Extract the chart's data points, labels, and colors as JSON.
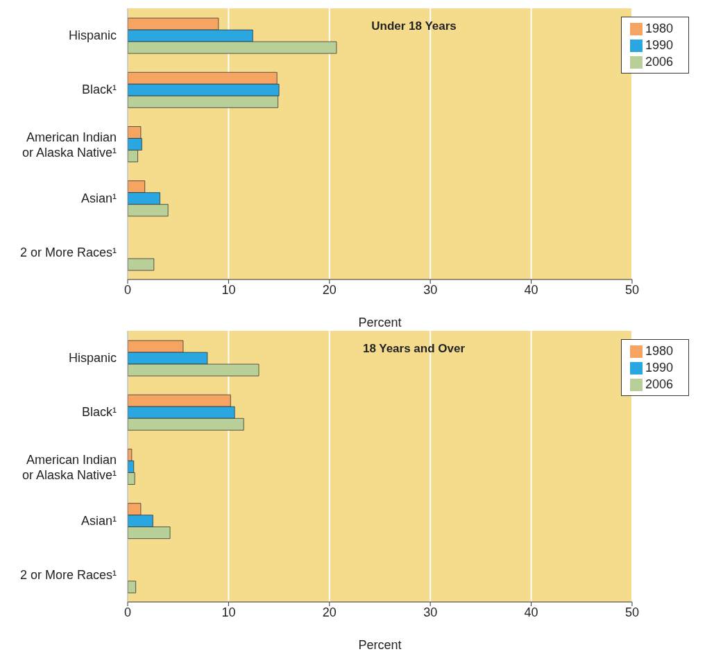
{
  "chart_data": [
    {
      "type": "bar",
      "orientation": "horizontal",
      "title": "Under 18 Years",
      "xlabel": "Percent",
      "categories": [
        "Hispanic",
        "Black¹",
        "American Indian or Alaska Native¹",
        "Asian¹",
        "2 or More Races¹"
      ],
      "series": [
        {
          "name": "1980",
          "color": "#f5a462",
          "values": [
            9.0,
            14.8,
            1.3,
            1.7,
            null
          ]
        },
        {
          "name": "1990",
          "color": "#2aa6e0",
          "values": [
            12.4,
            15.0,
            1.4,
            3.2,
            null
          ]
        },
        {
          "name": "2006",
          "color": "#b8cf98",
          "values": [
            20.7,
            14.9,
            1.0,
            4.0,
            2.6
          ]
        }
      ],
      "xlim": [
        0,
        50
      ],
      "xticks": [
        0,
        10,
        20,
        30,
        40,
        50
      ],
      "grid": "x",
      "legend": "top right"
    },
    {
      "type": "bar",
      "orientation": "horizontal",
      "title": "18 Years and Over",
      "xlabel": "Percent",
      "categories": [
        "Hispanic",
        "Black¹",
        "American Indian or Alaska Native¹",
        "Asian¹",
        "2 or More Races¹"
      ],
      "series": [
        {
          "name": "1980",
          "color": "#f5a462",
          "values": [
            5.5,
            10.2,
            0.4,
            1.3,
            null
          ]
        },
        {
          "name": "1990",
          "color": "#2aa6e0",
          "values": [
            7.9,
            10.6,
            0.6,
            2.5,
            null
          ]
        },
        {
          "name": "2006",
          "color": "#b8cf98",
          "values": [
            13.0,
            11.5,
            0.7,
            4.2,
            0.8
          ]
        }
      ],
      "xlim": [
        0,
        50
      ],
      "xticks": [
        0,
        10,
        20,
        30,
        40,
        50
      ],
      "grid": "x",
      "legend": "top right"
    }
  ]
}
